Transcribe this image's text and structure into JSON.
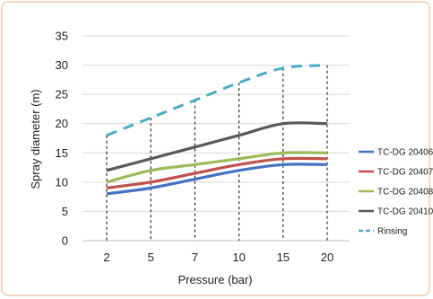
{
  "chart_data": {
    "type": "line",
    "title": "",
    "xlabel": "Pressure (bar)",
    "ylabel": "Spray diameter (m)",
    "categories": [
      "2",
      "5",
      "7",
      "10",
      "15",
      "20"
    ],
    "ylim": [
      0,
      35
    ],
    "yticks": [
      0,
      5,
      10,
      15,
      20,
      25,
      30,
      35
    ],
    "grid": "horizontal",
    "drop_lines": true,
    "legend_position": "right",
    "series": [
      {
        "name": "TC-DG 20406",
        "color": "#4472c4",
        "dash": false,
        "values": [
          8,
          9,
          10.5,
          12,
          13,
          13
        ]
      },
      {
        "name": "TC-DG 20407",
        "color": "#c0504d",
        "dash": false,
        "values": [
          9,
          10,
          11.5,
          13,
          14,
          14
        ]
      },
      {
        "name": "TC-DG 20408",
        "color": "#9bbb59",
        "dash": false,
        "values": [
          10,
          12,
          13,
          14,
          15,
          15
        ]
      },
      {
        "name": "TC-DG 20410",
        "color": "#595959",
        "dash": false,
        "values": [
          12,
          14,
          16,
          18,
          20,
          20
        ]
      },
      {
        "name": "Rinsing",
        "color": "#4bacc6",
        "dash": true,
        "values": [
          18,
          21,
          24,
          27,
          29.5,
          30
        ]
      }
    ]
  }
}
